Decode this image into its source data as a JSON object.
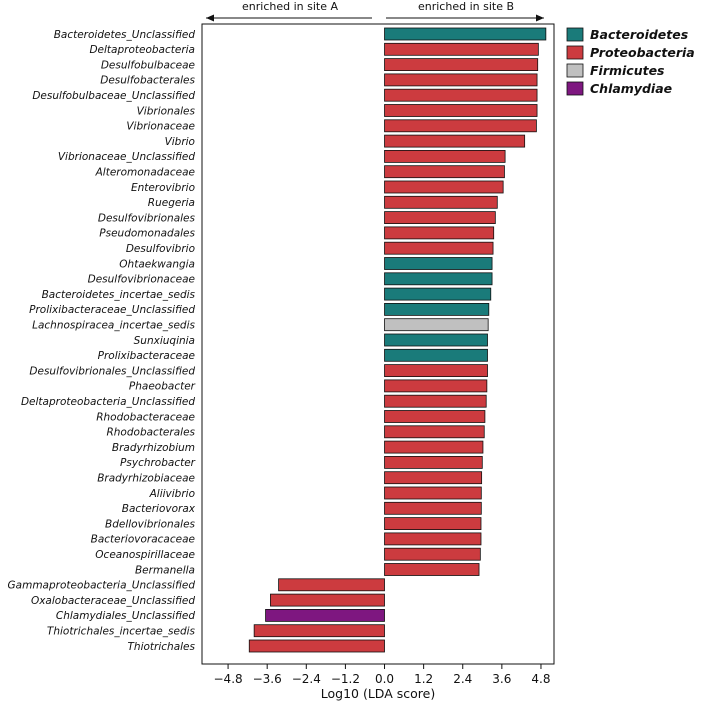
{
  "chart_data": {
    "type": "bar",
    "orientation": "horizontal",
    "xlabel": "Log10 (LDA score)",
    "xlim": [
      -5.6,
      5.2
    ],
    "xticks": [
      -4.8,
      -3.6,
      -2.4,
      -1.2,
      0.0,
      1.2,
      2.4,
      3.6,
      4.8
    ],
    "xtick_labels": [
      "−4.8",
      "−3.6",
      "−2.4",
      "−1.2",
      "0.0",
      "1.2",
      "2.4",
      "3.6",
      "4.8"
    ],
    "annotations": {
      "left": "enriched in site A",
      "right": "enriched in site B"
    },
    "legend": [
      {
        "name": "Bacteroidetes",
        "color": "#1a7b7a"
      },
      {
        "name": "Proteobacteria",
        "color": "#cc3b3f"
      },
      {
        "name": "Firmicutes",
        "color": "#c0c0c0"
      },
      {
        "name": "Chlamydiae",
        "color": "#7e1780"
      }
    ],
    "categories": [
      "Bacteroidetes_Unclassified",
      "Deltaproteobacteria",
      "Desulfobulbaceae",
      "Desulfobacterales",
      "Desulfobulbaceae_Unclassified",
      "Vibrionales",
      "Vibrionaceae",
      "Vibrio",
      "Vibrionaceae_Unclassified",
      "Alteromonadaceae",
      "Enterovibrio",
      "Ruegeria",
      "Desulfovibrionales",
      "Pseudomonadales",
      "Desulfovibrio",
      "Ohtaekwangia",
      "Desulfovibrionaceae",
      "Bacteroidetes_incertae_sedis",
      "Prolixibacteraceae_Unclassified",
      "Lachnospiracea_incertae_sedis",
      "Sunxiuqinia",
      "Prolixibacteraceae",
      "Desulfovibrionales_Unclassified",
      "Phaeobacter",
      "Deltaproteobacteria_Unclassified",
      "Rhodobacteraceae",
      "Rhodobacterales",
      "Bradyrhizobium",
      "Psychrobacter",
      "Bradyrhizobiaceae",
      "Aliivibrio",
      "Bacteriovorax",
      "Bdellovibrionales",
      "Bacteriovoracaceae",
      "Oceanospirillaceae",
      "Bermanella",
      "Gammaproteobacteria_Unclassified",
      "Oxalobacteraceae_Unclassified",
      "Chlamydiales_Unclassified",
      "Thiotrichales_incertae_sedis",
      "Thiotrichales"
    ],
    "values": [
      4.95,
      4.72,
      4.7,
      4.68,
      4.68,
      4.68,
      4.66,
      4.3,
      3.7,
      3.68,
      3.64,
      3.46,
      3.4,
      3.35,
      3.33,
      3.3,
      3.3,
      3.26,
      3.2,
      3.18,
      3.16,
      3.16,
      3.16,
      3.14,
      3.12,
      3.08,
      3.06,
      3.02,
      3.0,
      2.98,
      2.97,
      2.97,
      2.96,
      2.96,
      2.94,
      2.9,
      -3.25,
      -3.5,
      -3.65,
      -4.0,
      -4.15
    ],
    "phylum": [
      "Bacteroidetes",
      "Proteobacteria",
      "Proteobacteria",
      "Proteobacteria",
      "Proteobacteria",
      "Proteobacteria",
      "Proteobacteria",
      "Proteobacteria",
      "Proteobacteria",
      "Proteobacteria",
      "Proteobacteria",
      "Proteobacteria",
      "Proteobacteria",
      "Proteobacteria",
      "Proteobacteria",
      "Bacteroidetes",
      "Bacteroidetes",
      "Bacteroidetes",
      "Bacteroidetes",
      "Firmicutes",
      "Bacteroidetes",
      "Bacteroidetes",
      "Proteobacteria",
      "Proteobacteria",
      "Proteobacteria",
      "Proteobacteria",
      "Proteobacteria",
      "Proteobacteria",
      "Proteobacteria",
      "Proteobacteria",
      "Proteobacteria",
      "Proteobacteria",
      "Proteobacteria",
      "Proteobacteria",
      "Proteobacteria",
      "Proteobacteria",
      "Proteobacteria",
      "Proteobacteria",
      "Chlamydiae",
      "Proteobacteria",
      "Proteobacteria"
    ]
  }
}
